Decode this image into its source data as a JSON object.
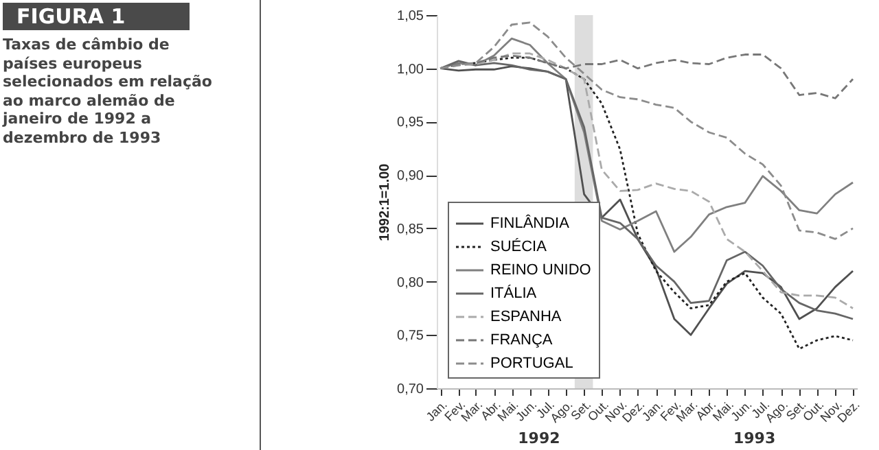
{
  "chart_data": {
    "type": "line",
    "title": "FIGURA 1",
    "subtitle": "Taxas de câmbio de países europeus selecionados em relação ao marco alemão de janeiro de 1992 a dezembro de 1993",
    "ylabel": "1992:1=1.00",
    "x": [
      "1992-01",
      "1992-02",
      "1992-03",
      "1992-04",
      "1992-05",
      "1992-06",
      "1992-07",
      "1992-08",
      "1992-09",
      "1992-10",
      "1992-11",
      "1992-12",
      "1993-01",
      "1993-02",
      "1993-03",
      "1993-04",
      "1993-05",
      "1993-06",
      "1993-07",
      "1993-08",
      "1993-09",
      "1993-10",
      "1993-11",
      "1993-12"
    ],
    "xlim": [
      "1991-12-26",
      "1993-12-08"
    ],
    "xticks": [
      {
        "value": "1992-01",
        "label": "Jan."
      },
      {
        "value": "1992-02",
        "label": "Fev."
      },
      {
        "value": "1992-03",
        "label": "Mar."
      },
      {
        "value": "1992-04",
        "label": "Abr."
      },
      {
        "value": "1992-05",
        "label": "Mai."
      },
      {
        "value": "1992-06",
        "label": "Jun."
      },
      {
        "value": "1992-07",
        "label": "Jul."
      },
      {
        "value": "1992-08",
        "label": "Ago."
      },
      {
        "value": "1992-09",
        "label": "Set."
      },
      {
        "value": "1992-10",
        "label": "Out."
      },
      {
        "value": "1992-11",
        "label": "Nov."
      },
      {
        "value": "1992-12",
        "label": "Dez."
      },
      {
        "value": "1993-01",
        "label": "Jan."
      },
      {
        "value": "1993-02",
        "label": "Fev."
      },
      {
        "value": "1993-03",
        "label": "Mar."
      },
      {
        "value": "1993-04",
        "label": "Abr."
      },
      {
        "value": "1993-05",
        "label": "Mai."
      },
      {
        "value": "1993-06",
        "label": "Jun."
      },
      {
        "value": "1993-07",
        "label": "Jul."
      },
      {
        "value": "1993-08",
        "label": "Ago."
      },
      {
        "value": "1993-09",
        "label": "Set."
      },
      {
        "value": "1993-10",
        "label": "Out."
      },
      {
        "value": "1993-11",
        "label": "Nov."
      },
      {
        "value": "1993-12",
        "label": "Dez."
      }
    ],
    "series": [
      {
        "name": "FINLÂNDIA",
        "color": "#505050",
        "line_style": "solid",
        "values": [
          1.0,
          0.998,
          0.999,
          0.999,
          1.002,
          1.0,
          0.997,
          0.99,
          0.882,
          0.86,
          0.877,
          0.84,
          0.812,
          0.765,
          0.75,
          0.775,
          0.798,
          0.81,
          0.808,
          0.795,
          0.765,
          0.775,
          0.795,
          0.81
        ]
      },
      {
        "name": "SUÉCIA",
        "color": "#222222",
        "line_style": "dotted",
        "values": [
          1.0,
          1.004,
          1.005,
          1.008,
          1.01,
          1.01,
          1.005,
          1.0,
          0.99,
          0.967,
          0.924,
          0.845,
          0.81,
          0.79,
          0.775,
          0.778,
          0.8,
          0.808,
          0.785,
          0.77,
          0.737,
          0.745,
          0.749,
          0.745
        ]
      },
      {
        "name": "REINO UNIDO",
        "color": "#808080",
        "line_style": "solid",
        "values": [
          1.0,
          1.005,
          1.003,
          1.012,
          1.028,
          1.022,
          1.005,
          0.99,
          0.94,
          0.857,
          0.849,
          0.857,
          0.866,
          0.828,
          0.842,
          0.863,
          0.87,
          0.874,
          0.899,
          0.885,
          0.867,
          0.864,
          0.882,
          0.893
        ]
      },
      {
        "name": "ITÁLIA",
        "color": "#666666",
        "line_style": "solid",
        "values": [
          1.0,
          1.007,
          1.003,
          1.005,
          1.003,
          0.999,
          0.997,
          0.99,
          0.945,
          0.86,
          0.855,
          0.84,
          0.815,
          0.8,
          0.78,
          0.782,
          0.82,
          0.828,
          0.815,
          0.793,
          0.78,
          0.773,
          0.77,
          0.765
        ]
      },
      {
        "name": "ESPANHA",
        "color": "#aaaaaa",
        "line_style": "dashed",
        "values": [
          1.0,
          1.003,
          1.004,
          1.008,
          1.014,
          1.014,
          1.008,
          1.0,
          0.99,
          0.905,
          0.885,
          0.886,
          0.892,
          0.887,
          0.885,
          0.875,
          0.84,
          0.828,
          0.81,
          0.79,
          0.787,
          0.787,
          0.785,
          0.775
        ]
      },
      {
        "name": "FRANÇA",
        "color": "#777777",
        "line_style": "dashed",
        "values": [
          1.0,
          1.004,
          1.005,
          1.01,
          1.012,
          1.01,
          1.005,
          1.0,
          1.004,
          1.004,
          1.008,
          1.0,
          1.005,
          1.008,
          1.005,
          1.004,
          1.01,
          1.013,
          1.013,
          1.0,
          0.975,
          0.977,
          0.972,
          0.99
        ]
      },
      {
        "name": "PORTUGAL",
        "color": "#8c8c8c",
        "line_style": "dashed",
        "values": [
          1.0,
          1.003,
          1.005,
          1.02,
          1.041,
          1.043,
          1.03,
          1.01,
          0.995,
          0.98,
          0.973,
          0.971,
          0.966,
          0.963,
          0.95,
          0.94,
          0.935,
          0.92,
          0.91,
          0.89,
          0.848,
          0.846,
          0.84,
          0.85
        ]
      }
    ],
    "ylim": [
      0.7,
      1.05
    ],
    "yticks": [
      {
        "value": 0.7,
        "label": "0,70"
      },
      {
        "value": 0.75,
        "label": "0,75"
      },
      {
        "value": 0.8,
        "label": "0,80"
      },
      {
        "value": 0.85,
        "label": "0,85"
      },
      {
        "value": 0.9,
        "label": "0,90"
      },
      {
        "value": 0.95,
        "label": "0,95"
      },
      {
        "value": 1.0,
        "label": "1,00"
      },
      {
        "value": 1.05,
        "label": "1,05"
      }
    ],
    "bands": [
      {
        "axis": "x",
        "from": "1992-08-16",
        "to": "1992-09-16",
        "color": "#dddddd"
      }
    ],
    "annotations": [
      "1992",
      "1993"
    ],
    "legend": "bottom left"
  }
}
